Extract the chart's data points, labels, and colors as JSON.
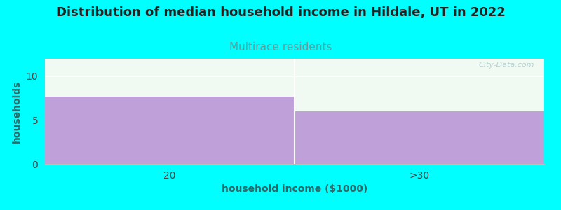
{
  "title": "Distribution of median household income in Hildale, UT in 2022",
  "subtitle": "Multirace residents",
  "xlabel": "household income ($1000)",
  "ylabel": "households",
  "categories": [
    "20",
    ">30"
  ],
  "values": [
    7.7,
    6.0
  ],
  "bar_color": "#C0A0D8",
  "bar_edgecolor": "#C0A0D8",
  "background_color": "#00FFFF",
  "plot_bg_color": "#F0FAF2",
  "title_fontsize": 13,
  "subtitle_fontsize": 11,
  "subtitle_color": "#669999",
  "ylabel_color": "#336666",
  "xlabel_color": "#336666",
  "tick_color": "#444444",
  "ylim": [
    0,
    12
  ],
  "yticks": [
    0,
    5,
    10
  ],
  "watermark": "City-Data.com",
  "watermark_color": "#AACCCC"
}
